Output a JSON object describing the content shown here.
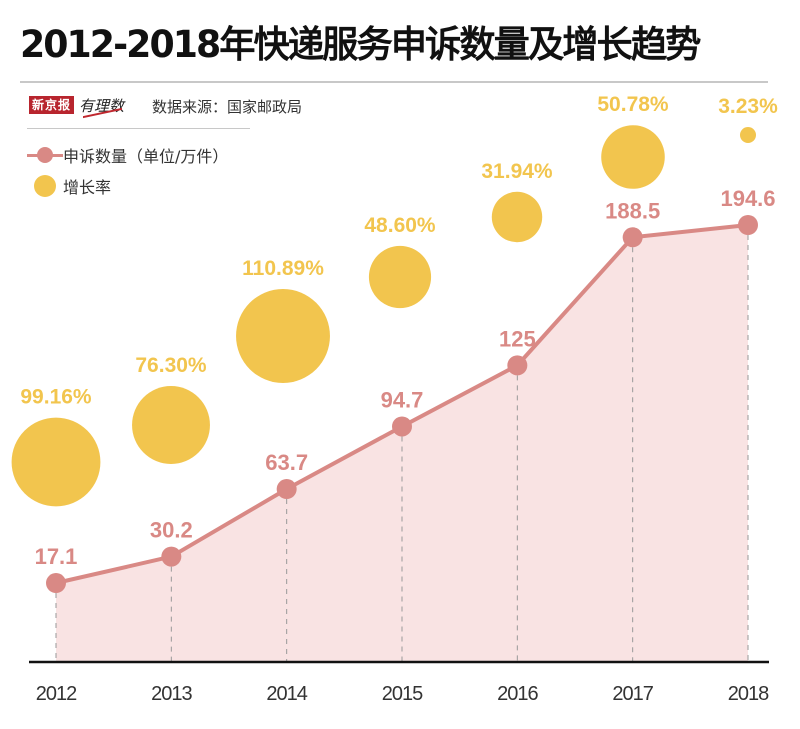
{
  "title": "2012-2018年快递服务申诉数量及增长趋势",
  "brand": {
    "name": "新京报",
    "sub": "有理数"
  },
  "source": "数据来源：国家邮政局",
  "legend": {
    "count_label": "申诉数量（单位/万件）",
    "rate_label": "增长率"
  },
  "colors": {
    "line": "#d98985",
    "area": "#f9e3e3",
    "bubble": "#f2c54e",
    "axis": "#111111"
  },
  "chart_data": {
    "type": "line",
    "title": "2012-2018年快递服务申诉数量及增长趋势",
    "xlabel": "",
    "ylabel": "申诉数量（单位/万件）",
    "categories": [
      "2012",
      "2013",
      "2014",
      "2015",
      "2016",
      "2017",
      "2018"
    ],
    "series": [
      {
        "name": "申诉数量（单位/万件）",
        "type": "area-line",
        "values": [
          17.1,
          30.2,
          63.7,
          94.7,
          125,
          188.5,
          194.6
        ],
        "labels": [
          "17.1",
          "30.2",
          "63.7",
          "94.7",
          "125",
          "188.5",
          "194.6"
        ]
      },
      {
        "name": "增长率",
        "type": "bubble",
        "values": [
          99.16,
          76.3,
          110.89,
          48.6,
          31.94,
          50.78,
          3.23
        ],
        "labels": [
          "99.16%",
          "76.30%",
          "110.89%",
          "48.60%",
          "31.94%",
          "50.78%",
          "3.23%"
        ]
      }
    ],
    "ylim": [
      0,
      200
    ],
    "grid": false,
    "legend_position": "top-left"
  }
}
